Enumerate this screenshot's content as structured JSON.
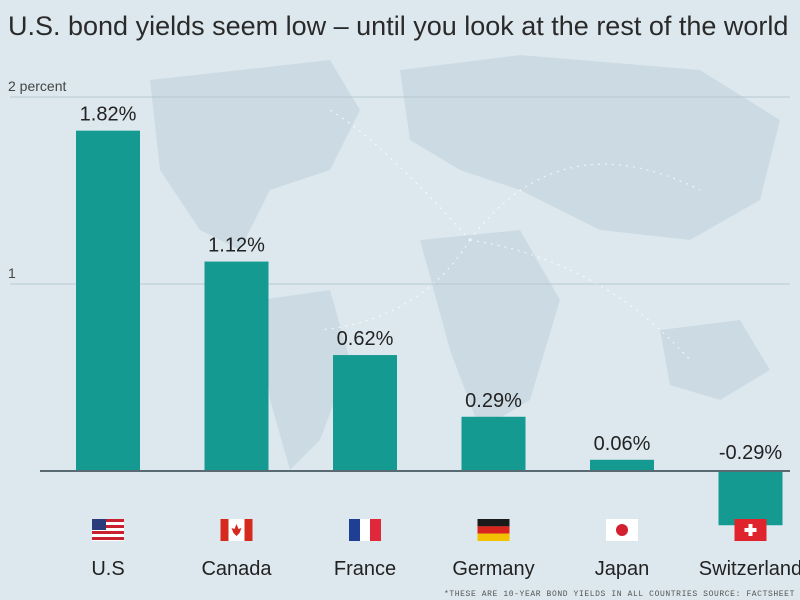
{
  "chart_data": {
    "type": "bar",
    "title": "U.S. bond yields seem low – until you look at the rest of the world",
    "categories": [
      "U.S",
      "Canada",
      "France",
      "Germany",
      "Japan",
      "Switzerland"
    ],
    "values": [
      1.82,
      1.12,
      0.62,
      0.29,
      0.06,
      -0.29
    ],
    "value_labels": [
      "1.82%",
      "1.12%",
      "0.62%",
      "0.29%",
      "0.06%",
      "-0.29%"
    ],
    "y_ticks": [
      {
        "value": 2,
        "label": "2 percent"
      },
      {
        "value": 1,
        "label": "1"
      }
    ],
    "ylim": [
      -0.3,
      2
    ],
    "grid": true,
    "bar_color": "#159a92",
    "flags": [
      "us-flag-icon",
      "canada-flag-icon",
      "france-flag-icon",
      "germany-flag-icon",
      "japan-flag-icon",
      "switzerland-flag-icon"
    ],
    "footnote": "*THESE ARE 10-YEAR BOND YIELDS IN ALL COUNTRIES SOURCE: FACTSHEET"
  }
}
